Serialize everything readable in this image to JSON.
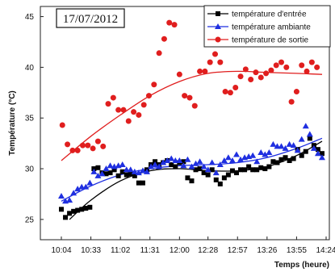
{
  "chart_data": {
    "type": "scatter",
    "date_label": "17/07/2012",
    "xlabel": "Temps (heure)",
    "ylabel": "Température (°C)",
    "x_tick_labels": [
      "10:04",
      "10:33",
      "11:02",
      "11:31",
      "12:00",
      "12:28",
      "12:57",
      "13:26",
      "13:55",
      "14:24"
    ],
    "xlim": [
      "10:04",
      "14:24"
    ],
    "ylim": [
      23,
      46
    ],
    "y_ticks": [
      25,
      30,
      35,
      40,
      45
    ],
    "grid": false,
    "legend_position": "top-right",
    "series": [
      {
        "name": "température d'entrée",
        "color": "#000000",
        "marker": "square",
        "points": [
          [
            "10:04",
            26.0
          ],
          [
            "10:08",
            25.2
          ],
          [
            "10:12",
            25.6
          ],
          [
            "10:16",
            25.8
          ],
          [
            "10:20",
            25.9
          ],
          [
            "10:24",
            26.0
          ],
          [
            "10:28",
            26.1
          ],
          [
            "10:32",
            26.2
          ],
          [
            "10:36",
            30.0
          ],
          [
            "10:40",
            30.1
          ],
          [
            "10:44",
            29.6
          ],
          [
            "10:48",
            29.5
          ],
          [
            "10:52",
            29.6
          ],
          [
            "10:56",
            29.9
          ],
          [
            "11:00",
            29.3
          ],
          [
            "11:04",
            29.7
          ],
          [
            "11:08",
            29.4
          ],
          [
            "11:12",
            29.5
          ],
          [
            "11:16",
            29.3
          ],
          [
            "11:20",
            28.6
          ],
          [
            "11:24",
            28.6
          ],
          [
            "11:28",
            29.9
          ],
          [
            "11:32",
            30.4
          ],
          [
            "11:36",
            30.7
          ],
          [
            "11:40",
            30.4
          ],
          [
            "11:44",
            30.6
          ],
          [
            "11:48",
            30.8
          ],
          [
            "11:52",
            30.4
          ],
          [
            "11:56",
            30.2
          ],
          [
            "12:00",
            30.6
          ],
          [
            "12:04",
            30.7
          ],
          [
            "12:08",
            29.1
          ],
          [
            "12:12",
            28.8
          ],
          [
            "12:16",
            29.9
          ],
          [
            "12:20",
            30.0
          ],
          [
            "12:24",
            29.6
          ],
          [
            "12:28",
            29.4
          ],
          [
            "12:32",
            29.9
          ],
          [
            "12:36",
            28.9
          ],
          [
            "12:40",
            28.5
          ],
          [
            "12:44",
            29.1
          ],
          [
            "12:48",
            29.4
          ],
          [
            "12:52",
            29.8
          ],
          [
            "12:56",
            29.6
          ],
          [
            "13:00",
            29.9
          ],
          [
            "13:04",
            29.9
          ],
          [
            "13:08",
            30.2
          ],
          [
            "13:12",
            29.9
          ],
          [
            "13:16",
            29.9
          ],
          [
            "13:20",
            30.1
          ],
          [
            "13:24",
            30.0
          ],
          [
            "13:28",
            30.2
          ],
          [
            "13:32",
            30.7
          ],
          [
            "13:36",
            30.6
          ],
          [
            "13:40",
            30.9
          ],
          [
            "13:44",
            31.1
          ],
          [
            "13:48",
            30.8
          ],
          [
            "13:52",
            31.0
          ],
          [
            "13:56",
            31.9
          ],
          [
            "14:00",
            31.3
          ],
          [
            "14:04",
            31.7
          ],
          [
            "14:08",
            33.0
          ],
          [
            "14:12",
            32.3
          ],
          [
            "14:16",
            31.9
          ],
          [
            "14:20",
            31.5
          ]
        ],
        "fit": [
          [
            "10:12",
            25.0
          ],
          [
            "10:33",
            26.9
          ],
          [
            "11:02",
            28.8
          ],
          [
            "11:31",
            29.8
          ],
          [
            "12:00",
            30.0
          ],
          [
            "12:28",
            29.8
          ],
          [
            "12:57",
            29.8
          ],
          [
            "13:26",
            30.2
          ],
          [
            "13:55",
            31.3
          ],
          [
            "14:20",
            32.7
          ]
        ]
      },
      {
        "name": "température ambiante",
        "color": "#1f2fe0",
        "marker": "triangle",
        "points": [
          [
            "10:04",
            27.3
          ],
          [
            "10:08",
            26.8
          ],
          [
            "10:12",
            26.9
          ],
          [
            "10:16",
            27.6
          ],
          [
            "10:20",
            28.0
          ],
          [
            "10:24",
            28.2
          ],
          [
            "10:28",
            28.2
          ],
          [
            "10:32",
            28.6
          ],
          [
            "10:36",
            29.7
          ],
          [
            "10:40",
            29.3
          ],
          [
            "10:44",
            29.5
          ],
          [
            "10:48",
            30.0
          ],
          [
            "10:52",
            30.3
          ],
          [
            "10:56",
            30.2
          ],
          [
            "11:00",
            30.3
          ],
          [
            "11:04",
            30.4
          ],
          [
            "11:08",
            29.9
          ],
          [
            "11:12",
            29.9
          ],
          [
            "11:16",
            29.7
          ],
          [
            "11:20",
            29.6
          ],
          [
            "11:24",
            29.8
          ],
          [
            "11:28",
            29.7
          ],
          [
            "11:32",
            30.2
          ],
          [
            "11:36",
            30.4
          ],
          [
            "11:40",
            30.2
          ],
          [
            "11:44",
            30.6
          ],
          [
            "11:48",
            30.8
          ],
          [
            "11:52",
            31.0
          ],
          [
            "11:56",
            30.8
          ],
          [
            "12:00",
            30.8
          ],
          [
            "12:04",
            30.3
          ],
          [
            "12:08",
            30.9
          ],
          [
            "12:12",
            30.2
          ],
          [
            "12:16",
            30.5
          ],
          [
            "12:20",
            30.7
          ],
          [
            "12:24",
            30.2
          ],
          [
            "12:28",
            29.9
          ],
          [
            "12:32",
            30.6
          ],
          [
            "12:36",
            29.6
          ],
          [
            "12:40",
            30.4
          ],
          [
            "12:44",
            30.8
          ],
          [
            "12:48",
            31.1
          ],
          [
            "12:52",
            30.8
          ],
          [
            "12:56",
            31.4
          ],
          [
            "13:00",
            30.9
          ],
          [
            "13:04",
            31.1
          ],
          [
            "13:08",
            31.2
          ],
          [
            "13:12",
            31.3
          ],
          [
            "13:16",
            30.7
          ],
          [
            "13:20",
            31.6
          ],
          [
            "13:24",
            31.4
          ],
          [
            "13:28",
            31.6
          ],
          [
            "13:32",
            32.4
          ],
          [
            "13:36",
            32.2
          ],
          [
            "13:40",
            32.2
          ],
          [
            "13:44",
            32.0
          ],
          [
            "13:48",
            32.4
          ],
          [
            "13:52",
            32.3
          ],
          [
            "13:56",
            31.8
          ],
          [
            "14:00",
            32.9
          ],
          [
            "14:04",
            34.2
          ],
          [
            "14:08",
            33.4
          ],
          [
            "14:12",
            32.0
          ],
          [
            "14:16",
            31.5
          ],
          [
            "14:20",
            31.1
          ]
        ],
        "fit": [
          [
            "10:04",
            26.8
          ],
          [
            "10:33",
            28.3
          ],
          [
            "11:02",
            29.4
          ],
          [
            "11:31",
            30.0
          ],
          [
            "12:00",
            30.3
          ],
          [
            "12:28",
            30.4
          ],
          [
            "12:57",
            30.6
          ],
          [
            "13:26",
            31.1
          ],
          [
            "13:55",
            32.0
          ],
          [
            "14:20",
            33.0
          ]
        ]
      },
      {
        "name": "température de sortie",
        "color": "#e01e1e",
        "marker": "circle",
        "points": [
          [
            "10:05",
            34.3
          ],
          [
            "10:10",
            32.4
          ],
          [
            "10:15",
            31.8
          ],
          [
            "10:20",
            31.8
          ],
          [
            "10:25",
            32.3
          ],
          [
            "10:30",
            32.3
          ],
          [
            "10:35",
            32.0
          ],
          [
            "10:40",
            32.7
          ],
          [
            "10:45",
            32.2
          ],
          [
            "10:50",
            36.4
          ],
          [
            "10:55",
            37.0
          ],
          [
            "11:00",
            35.8
          ],
          [
            "11:05",
            35.8
          ],
          [
            "11:10",
            34.7
          ],
          [
            "11:15",
            35.6
          ],
          [
            "11:20",
            35.3
          ],
          [
            "11:25",
            36.3
          ],
          [
            "11:30",
            37.2
          ],
          [
            "11:35",
            38.3
          ],
          [
            "11:40",
            41.4
          ],
          [
            "11:45",
            42.8
          ],
          [
            "11:50",
            44.4
          ],
          [
            "11:55",
            44.2
          ],
          [
            "12:00",
            39.3
          ],
          [
            "12:05",
            37.2
          ],
          [
            "12:10",
            37.0
          ],
          [
            "12:15",
            36.2
          ],
          [
            "12:20",
            39.6
          ],
          [
            "12:25",
            39.6
          ],
          [
            "12:30",
            40.5
          ],
          [
            "12:35",
            41.3
          ],
          [
            "12:40",
            40.5
          ],
          [
            "12:45",
            37.6
          ],
          [
            "12:50",
            37.5
          ],
          [
            "12:55",
            38.0
          ],
          [
            "13:00",
            39.1
          ],
          [
            "13:05",
            39.8
          ],
          [
            "13:10",
            38.8
          ],
          [
            "13:15",
            39.5
          ],
          [
            "13:20",
            39.0
          ],
          [
            "13:25",
            39.4
          ],
          [
            "13:30",
            39.7
          ],
          [
            "13:35",
            40.2
          ],
          [
            "13:40",
            40.5
          ],
          [
            "13:45",
            40.0
          ],
          [
            "13:50",
            36.6
          ],
          [
            "13:55",
            37.6
          ],
          [
            "14:00",
            40.2
          ],
          [
            "14:05",
            39.6
          ],
          [
            "14:10",
            40.5
          ],
          [
            "14:15",
            40.0
          ]
        ],
        "fit": [
          [
            "10:04",
            30.8
          ],
          [
            "10:33",
            33.2
          ],
          [
            "11:02",
            35.3
          ],
          [
            "11:31",
            37.2
          ],
          [
            "12:00",
            38.6
          ],
          [
            "12:28",
            39.4
          ],
          [
            "12:57",
            39.6
          ],
          [
            "13:26",
            39.5
          ],
          [
            "13:55",
            39.4
          ],
          [
            "14:20",
            39.3
          ]
        ]
      }
    ]
  }
}
